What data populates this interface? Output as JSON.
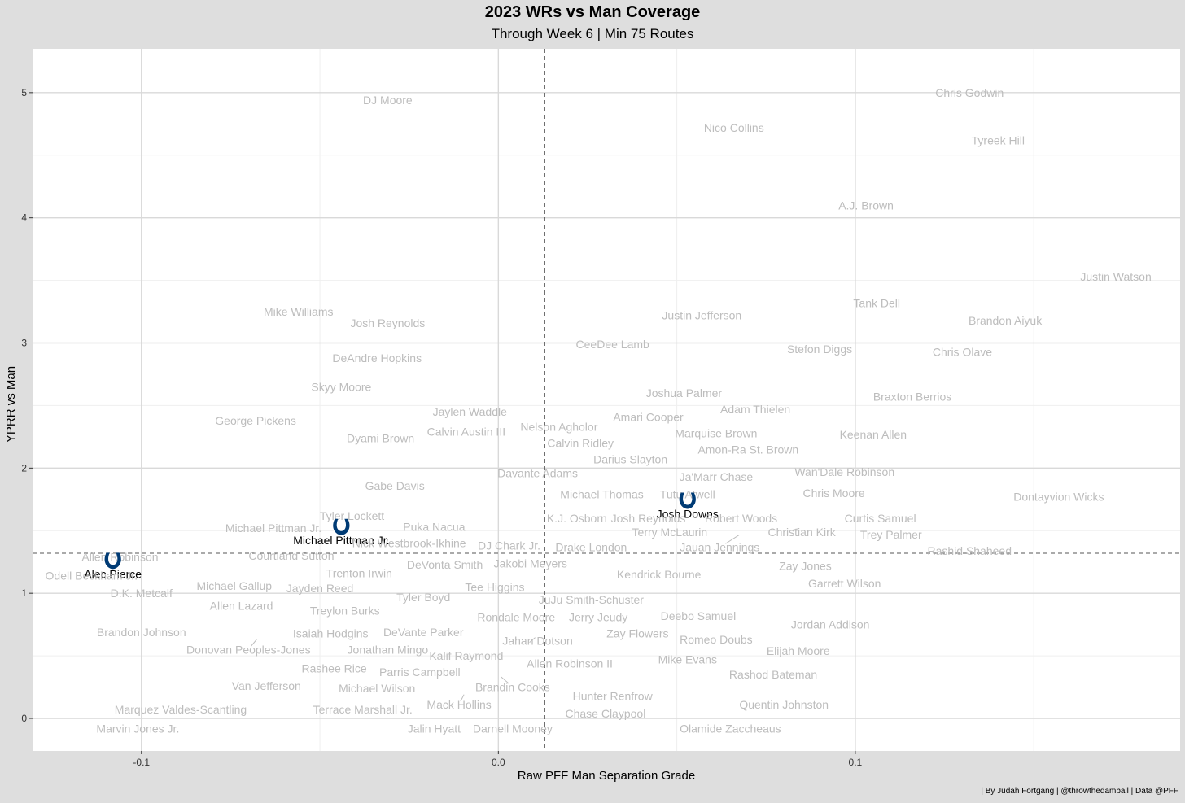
{
  "title": "2023 WRs vs Man Coverage",
  "subtitle": "Through Week 6 | Min 75 Routes",
  "caption": "| By Judah Fortgang | @throwthedamball | Data @PFF",
  "colors": {
    "panel": "#ffffff",
    "background": "#dedede",
    "grid": "#d9d9d9",
    "label": "#bdbdbd",
    "highlight": "#003b75"
  },
  "chart_data": {
    "type": "scatter",
    "xlabel": "Raw PFF Man Separation Grade",
    "ylabel": "YPRR vs Man",
    "xlim": [
      -0.1305,
      0.191
    ],
    "ylim": [
      -0.26,
      5.35
    ],
    "xticks": [
      -0.1,
      0.0,
      0.1
    ],
    "xtick_labels": [
      "-0.1",
      "0.0",
      "0.1"
    ],
    "yticks": [
      0,
      1,
      2,
      3,
      4,
      5
    ],
    "ytick_labels": [
      "0",
      "1",
      "2",
      "3",
      "4",
      "5"
    ],
    "grid": true,
    "reference_lines": {
      "x": 0.013,
      "y": 1.32
    },
    "highlight_marker": "colts-horseshoe-icon",
    "points": [
      {
        "name": "Alec Pierce",
        "x": -0.108,
        "y": 1.22,
        "highlight": true
      },
      {
        "name": "Michael Pittman Jr.",
        "x": -0.044,
        "y": 1.49,
        "highlight": true
      },
      {
        "name": "Josh Downs",
        "x": 0.053,
        "y": 1.7,
        "highlight": true
      },
      {
        "name": "DJ Moore",
        "x": -0.031,
        "y": 4.94
      },
      {
        "name": "Nico Collins",
        "x": 0.066,
        "y": 4.72
      },
      {
        "name": "Chris Godwin",
        "x": 0.132,
        "y": 5.0
      },
      {
        "name": "Tyreek Hill",
        "x": 0.14,
        "y": 4.62
      },
      {
        "name": "A.J. Brown",
        "x": 0.103,
        "y": 4.1
      },
      {
        "name": "Justin Watson",
        "x": 0.173,
        "y": 3.53
      },
      {
        "name": "Tank Dell",
        "x": 0.106,
        "y": 3.32
      },
      {
        "name": "Brandon Aiyuk",
        "x": 0.142,
        "y": 3.18
      },
      {
        "name": "Justin Jefferson",
        "x": 0.057,
        "y": 3.22
      },
      {
        "name": "Mike Williams",
        "x": -0.056,
        "y": 3.25
      },
      {
        "name": "Josh Reynolds",
        "x": -0.031,
        "y": 3.16
      },
      {
        "name": "CeeDee Lamb",
        "x": 0.032,
        "y": 2.99
      },
      {
        "name": "Stefon Diggs",
        "x": 0.09,
        "y": 2.95
      },
      {
        "name": "Chris Olave",
        "x": 0.13,
        "y": 2.93
      },
      {
        "name": "DeAndre Hopkins",
        "x": -0.034,
        "y": 2.88
      },
      {
        "name": "Joshua Palmer",
        "x": 0.052,
        "y": 2.6
      },
      {
        "name": "Braxton Berrios",
        "x": 0.116,
        "y": 2.57
      },
      {
        "name": "Skyy Moore",
        "x": -0.044,
        "y": 2.65
      },
      {
        "name": "Adam Thielen",
        "x": 0.072,
        "y": 2.47
      },
      {
        "name": "Amari Cooper",
        "x": 0.042,
        "y": 2.41
      },
      {
        "name": "Jaylen Waddle",
        "x": -0.008,
        "y": 2.45
      },
      {
        "name": "George Pickens",
        "x": -0.068,
        "y": 2.38
      },
      {
        "name": "Calvin Austin III",
        "x": -0.009,
        "y": 2.29
      },
      {
        "name": "Nelson Agholor",
        "x": 0.017,
        "y": 2.33
      },
      {
        "name": "Marquise Brown",
        "x": 0.061,
        "y": 2.28
      },
      {
        "name": "Keenan Allen",
        "x": 0.105,
        "y": 2.27
      },
      {
        "name": "Dyami Brown",
        "x": -0.033,
        "y": 2.24
      },
      {
        "name": "Calvin Ridley",
        "x": 0.023,
        "y": 2.2
      },
      {
        "name": "Amon-Ra St. Brown",
        "x": 0.07,
        "y": 2.15
      },
      {
        "name": "Darius Slayton",
        "x": 0.037,
        "y": 2.07
      },
      {
        "name": "Davante Adams",
        "x": 0.011,
        "y": 1.96
      },
      {
        "name": "Ja'Marr Chase",
        "x": 0.061,
        "y": 1.93
      },
      {
        "name": "Wan'Dale Robinson",
        "x": 0.097,
        "y": 1.97
      },
      {
        "name": "Gabe Davis",
        "x": -0.029,
        "y": 1.86
      },
      {
        "name": "Michael Thomas",
        "x": 0.029,
        "y": 1.79
      },
      {
        "name": "Tutu Atwell",
        "x": 0.053,
        "y": 1.79
      },
      {
        "name": "Chris Moore",
        "x": 0.094,
        "y": 1.8
      },
      {
        "name": "Dontayvion Wicks",
        "x": 0.157,
        "y": 1.77
      },
      {
        "name": "Tyler Lockett",
        "x": -0.041,
        "y": 1.62
      },
      {
        "name": "K.J. Osborn",
        "x": 0.022,
        "y": 1.6
      },
      {
        "name": "Josh Reynolds",
        "x": 0.042,
        "y": 1.6
      },
      {
        "name": "Robert Woods",
        "x": 0.068,
        "y": 1.6
      },
      {
        "name": "Curtis Samuel",
        "x": 0.107,
        "y": 1.6
      },
      {
        "name": "Puka Nacua",
        "x": -0.018,
        "y": 1.53
      },
      {
        "name": "Michael Pittman Jr.",
        "x": -0.063,
        "y": 1.52
      },
      {
        "name": "Terry McLaurin",
        "x": 0.048,
        "y": 1.49
      },
      {
        "name": "Christian Kirk",
        "x": 0.085,
        "y": 1.49
      },
      {
        "name": "Trey Palmer",
        "x": 0.11,
        "y": 1.47
      },
      {
        "name": "Nick Westbrook-Ikhine",
        "x": -0.025,
        "y": 1.4
      },
      {
        "name": "DJ Chark Jr.",
        "x": 0.003,
        "y": 1.38
      },
      {
        "name": "Drake London",
        "x": 0.026,
        "y": 1.37
      },
      {
        "name": "Jauan Jennings",
        "x": 0.062,
        "y": 1.37
      },
      {
        "name": "Rashid Shaheed",
        "x": 0.132,
        "y": 1.34
      },
      {
        "name": "Courtland Sutton",
        "x": -0.058,
        "y": 1.3
      },
      {
        "name": "Allen Robinson",
        "x": -0.106,
        "y": 1.29
      },
      {
        "name": "DeVonta Smith",
        "x": -0.015,
        "y": 1.23
      },
      {
        "name": "Jakobi Meyers",
        "x": 0.009,
        "y": 1.24
      },
      {
        "name": "Zay Jones",
        "x": 0.086,
        "y": 1.22
      },
      {
        "name": "Trenton Irwin",
        "x": -0.039,
        "y": 1.16
      },
      {
        "name": "Kendrick Bourne",
        "x": 0.045,
        "y": 1.15
      },
      {
        "name": "Odell Beckham Jr.",
        "x": -0.114,
        "y": 1.14
      },
      {
        "name": "Garrett Wilson",
        "x": 0.097,
        "y": 1.08
      },
      {
        "name": "Michael Gallup",
        "x": -0.074,
        "y": 1.06
      },
      {
        "name": "Jayden Reed",
        "x": -0.05,
        "y": 1.04
      },
      {
        "name": "Tee Higgins",
        "x": -0.001,
        "y": 1.05
      },
      {
        "name": "D.K. Metcalf",
        "x": -0.1,
        "y": 1.0
      },
      {
        "name": "Tyler Boyd",
        "x": -0.021,
        "y": 0.97
      },
      {
        "name": "JuJu Smith-Schuster",
        "x": 0.026,
        "y": 0.95
      },
      {
        "name": "Allen Lazard",
        "x": -0.072,
        "y": 0.9
      },
      {
        "name": "Treylon Burks",
        "x": -0.043,
        "y": 0.86
      },
      {
        "name": "Rondale Moore",
        "x": 0.005,
        "y": 0.81
      },
      {
        "name": "Jerry Jeudy",
        "x": 0.028,
        "y": 0.81
      },
      {
        "name": "Deebo Samuel",
        "x": 0.056,
        "y": 0.82
      },
      {
        "name": "Jordan Addison",
        "x": 0.093,
        "y": 0.75
      },
      {
        "name": "Brandon Johnson",
        "x": -0.1,
        "y": 0.69
      },
      {
        "name": "Isaiah Hodgins",
        "x": -0.047,
        "y": 0.68
      },
      {
        "name": "DeVante Parker",
        "x": -0.021,
        "y": 0.69
      },
      {
        "name": "Zay Flowers",
        "x": 0.039,
        "y": 0.68
      },
      {
        "name": "Jahan Dotson",
        "x": 0.011,
        "y": 0.62
      },
      {
        "name": "Romeo Doubs",
        "x": 0.061,
        "y": 0.63
      },
      {
        "name": "Donovan Peoples-Jones",
        "x": -0.07,
        "y": 0.55
      },
      {
        "name": "Jonathan Mingo",
        "x": -0.031,
        "y": 0.55
      },
      {
        "name": "Elijah Moore",
        "x": 0.084,
        "y": 0.54
      },
      {
        "name": "Kalif Raymond",
        "x": -0.009,
        "y": 0.5
      },
      {
        "name": "Allen Robinson II",
        "x": 0.02,
        "y": 0.44
      },
      {
        "name": "Mike Evans",
        "x": 0.053,
        "y": 0.47
      },
      {
        "name": "Rashee Rice",
        "x": -0.046,
        "y": 0.4
      },
      {
        "name": "Parris Campbell",
        "x": -0.022,
        "y": 0.37
      },
      {
        "name": "Rashod Bateman",
        "x": 0.077,
        "y": 0.35
      },
      {
        "name": "Van Jefferson",
        "x": -0.065,
        "y": 0.26
      },
      {
        "name": "Michael Wilson",
        "x": -0.034,
        "y": 0.24
      },
      {
        "name": "Brandin Cooks",
        "x": 0.004,
        "y": 0.25
      },
      {
        "name": "Hunter Renfrow",
        "x": 0.032,
        "y": 0.18
      },
      {
        "name": "Mack Hollins",
        "x": -0.011,
        "y": 0.11
      },
      {
        "name": "Quentin Johnston",
        "x": 0.08,
        "y": 0.11
      },
      {
        "name": "Marquez Valdes-Scantling",
        "x": -0.089,
        "y": 0.07
      },
      {
        "name": "Terrace Marshall Jr.",
        "x": -0.038,
        "y": 0.07
      },
      {
        "name": "Chase Claypool",
        "x": 0.03,
        "y": 0.04
      },
      {
        "name": "Marvin Jones Jr.",
        "x": -0.101,
        "y": -0.08
      },
      {
        "name": "Jalin Hyatt",
        "x": -0.018,
        "y": -0.08
      },
      {
        "name": "Darnell Mooney",
        "x": 0.004,
        "y": -0.08
      },
      {
        "name": "Olamide Zaccheaus",
        "x": 0.065,
        "y": -0.08
      }
    ]
  }
}
